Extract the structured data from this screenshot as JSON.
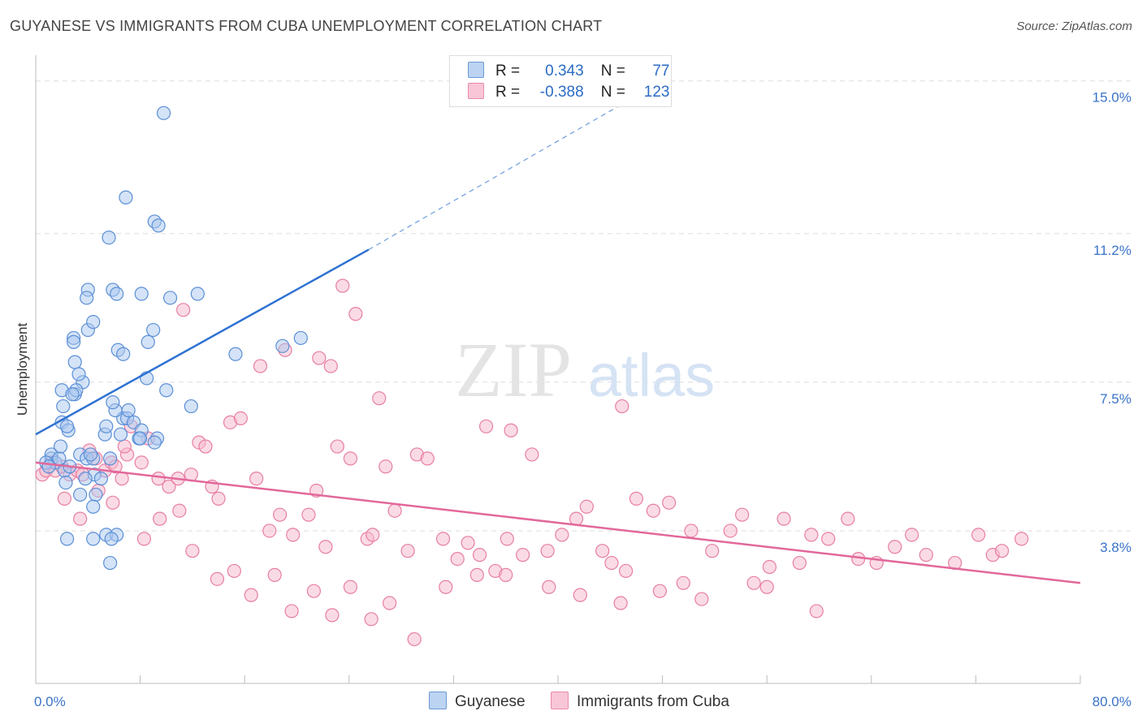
{
  "title": "GUYANESE VS IMMIGRANTS FROM CUBA UNEMPLOYMENT CORRELATION CHART",
  "source": "Source: ZipAtlas.com",
  "watermark": {
    "zip": "ZIP",
    "atlas": "atlas"
  },
  "legend": {
    "rows": [
      {
        "r_label": "R =",
        "r_value": "0.343",
        "n_label": "N =",
        "n_value": "77"
      },
      {
        "r_label": "R =",
        "r_value": "-0.388",
        "n_label": "N =",
        "n_value": "123"
      }
    ]
  },
  "colors": {
    "blue_fill": "#a9c8f0",
    "blue_stroke": "#5b8fd6",
    "blue_line": "#2e72d2",
    "pink_fill": "#f5b8cc",
    "pink_stroke": "#e87ea3",
    "pink_line": "#e2689a",
    "grid": "#dddddd",
    "tick_text": "#3a73c8"
  },
  "chart_data": {
    "type": "scatter",
    "title": "GUYANESE VS IMMIGRANTS FROM CUBA UNEMPLOYMENT CORRELATION CHART",
    "xlabel": "",
    "ylabel": "Unemployment",
    "xlim": [
      0,
      80
    ],
    "ylim": [
      0,
      15.5
    ],
    "x_tick_labels": [
      "0.0%",
      "80.0%"
    ],
    "y_ticks": [
      3.8,
      7.5,
      11.2,
      15.0
    ],
    "y_tick_labels": [
      "3.8%",
      "7.5%",
      "11.2%",
      "15.0%"
    ],
    "grid": "horizontal dashed",
    "legend_placement": "top-center",
    "series": [
      {
        "name": "Guyanese",
        "r": 0.343,
        "n": 77,
        "trend": {
          "x": [
            0,
            25.5
          ],
          "y": [
            6.2,
            10.8
          ],
          "dashed_to": [
            48,
            15.0
          ]
        },
        "points": [
          [
            1.2,
            5.6
          ],
          [
            1.2,
            5.7
          ],
          [
            1.5,
            5.5
          ],
          [
            1.8,
            5.6
          ],
          [
            0.8,
            5.5
          ],
          [
            1.0,
            5.4
          ],
          [
            2.2,
            5.3
          ],
          [
            2.6,
            5.4
          ],
          [
            1.9,
            5.9
          ],
          [
            2.0,
            6.5
          ],
          [
            2.5,
            6.3
          ],
          [
            2.4,
            6.4
          ],
          [
            2.3,
            5.0
          ],
          [
            3.4,
            5.7
          ],
          [
            3.9,
            5.6
          ],
          [
            4.5,
            5.2
          ],
          [
            4.4,
            5.6
          ],
          [
            5.0,
            5.1
          ],
          [
            3.8,
            5.1
          ],
          [
            4.2,
            5.7
          ],
          [
            2.1,
            6.9
          ],
          [
            2.0,
            7.3
          ],
          [
            3.0,
            7.2
          ],
          [
            3.6,
            7.5
          ],
          [
            3.1,
            7.3
          ],
          [
            3.0,
            8.0
          ],
          [
            3.3,
            7.7
          ],
          [
            2.9,
            8.6
          ],
          [
            2.9,
            8.5
          ],
          [
            2.8,
            7.2
          ],
          [
            4.0,
            8.8
          ],
          [
            5.7,
            5.6
          ],
          [
            5.3,
            6.2
          ],
          [
            6.7,
            6.6
          ],
          [
            7.0,
            6.6
          ],
          [
            7.1,
            6.8
          ],
          [
            6.1,
            6.8
          ],
          [
            5.9,
            7.0
          ],
          [
            5.4,
            6.4
          ],
          [
            7.5,
            6.5
          ],
          [
            6.5,
            6.2
          ],
          [
            8.1,
            6.3
          ],
          [
            7.9,
            6.1
          ],
          [
            8.0,
            6.1
          ],
          [
            9.3,
            6.1
          ],
          [
            9.1,
            6.0
          ],
          [
            8.5,
            7.6
          ],
          [
            10.0,
            7.3
          ],
          [
            4.0,
            9.8
          ],
          [
            3.9,
            9.6
          ],
          [
            4.4,
            9.0
          ],
          [
            5.9,
            9.8
          ],
          [
            6.2,
            9.7
          ],
          [
            8.1,
            9.7
          ],
          [
            9.0,
            8.8
          ],
          [
            8.6,
            8.5
          ],
          [
            10.3,
            9.6
          ],
          [
            6.3,
            8.3
          ],
          [
            6.7,
            8.2
          ],
          [
            11.9,
            6.9
          ],
          [
            4.6,
            4.7
          ],
          [
            4.4,
            4.4
          ],
          [
            3.4,
            4.7
          ],
          [
            2.4,
            3.6
          ],
          [
            4.4,
            3.6
          ],
          [
            5.4,
            3.7
          ],
          [
            5.7,
            3.0
          ],
          [
            6.2,
            3.7
          ],
          [
            5.8,
            3.6
          ],
          [
            9.8,
            14.2
          ],
          [
            6.9,
            12.1
          ],
          [
            9.1,
            11.5
          ],
          [
            9.4,
            11.4
          ],
          [
            5.6,
            11.1
          ],
          [
            12.4,
            9.7
          ],
          [
            15.3,
            8.2
          ],
          [
            18.9,
            8.4
          ],
          [
            20.3,
            8.6
          ]
        ]
      },
      {
        "name": "Immigrants from Cuba",
        "r": -0.388,
        "n": 123,
        "trend": {
          "x": [
            0,
            80
          ],
          "y": [
            5.5,
            2.5
          ]
        },
        "points": [
          [
            0.5,
            5.2
          ],
          [
            0.8,
            5.3
          ],
          [
            1.2,
            5.5
          ],
          [
            1.5,
            5.3
          ],
          [
            2.0,
            5.4
          ],
          [
            2.6,
            5.2
          ],
          [
            3.2,
            5.3
          ],
          [
            3.6,
            5.2
          ],
          [
            4.1,
            5.8
          ],
          [
            4.6,
            5.6
          ],
          [
            5.3,
            5.3
          ],
          [
            5.8,
            5.5
          ],
          [
            6.1,
            5.4
          ],
          [
            6.6,
            5.1
          ],
          [
            7.0,
            5.7
          ],
          [
            7.3,
            6.4
          ],
          [
            8.1,
            5.5
          ],
          [
            8.6,
            6.1
          ],
          [
            9.4,
            5.1
          ],
          [
            10.2,
            4.9
          ],
          [
            10.9,
            5.1
          ],
          [
            11.9,
            5.2
          ],
          [
            12.5,
            6.0
          ],
          [
            13.0,
            5.9
          ],
          [
            13.5,
            4.9
          ],
          [
            14.0,
            4.6
          ],
          [
            14.9,
            6.5
          ],
          [
            15.7,
            6.6
          ],
          [
            16.9,
            5.1
          ],
          [
            17.9,
            3.8
          ],
          [
            18.7,
            4.2
          ],
          [
            19.7,
            3.7
          ],
          [
            20.9,
            4.2
          ],
          [
            21.5,
            4.8
          ],
          [
            22.2,
            3.4
          ],
          [
            23.1,
            5.9
          ],
          [
            24.1,
            5.6
          ],
          [
            25.4,
            3.6
          ],
          [
            25.8,
            3.7
          ],
          [
            26.8,
            5.4
          ],
          [
            27.5,
            4.3
          ],
          [
            28.5,
            3.3
          ],
          [
            29.2,
            5.7
          ],
          [
            30.0,
            5.6
          ],
          [
            31.2,
            3.6
          ],
          [
            32.3,
            3.1
          ],
          [
            33.1,
            3.5
          ],
          [
            34.0,
            3.2
          ],
          [
            35.2,
            2.8
          ],
          [
            36.1,
            3.6
          ],
          [
            37.3,
            3.2
          ],
          [
            38.0,
            5.7
          ],
          [
            39.2,
            3.3
          ],
          [
            40.3,
            3.7
          ],
          [
            41.4,
            4.1
          ],
          [
            42.2,
            4.4
          ],
          [
            43.4,
            3.3
          ],
          [
            44.1,
            3.0
          ],
          [
            45.2,
            2.8
          ],
          [
            46.0,
            4.6
          ],
          [
            47.3,
            4.3
          ],
          [
            48.5,
            4.5
          ],
          [
            49.6,
            2.5
          ],
          [
            50.2,
            3.8
          ],
          [
            51.8,
            3.3
          ],
          [
            53.2,
            3.8
          ],
          [
            54.1,
            4.2
          ],
          [
            55.0,
            2.5
          ],
          [
            56.2,
            2.9
          ],
          [
            57.3,
            4.1
          ],
          [
            58.5,
            3.0
          ],
          [
            59.4,
            3.7
          ],
          [
            60.7,
            3.6
          ],
          [
            62.2,
            4.1
          ],
          [
            63.0,
            3.1
          ],
          [
            64.4,
            3.0
          ],
          [
            65.8,
            3.4
          ],
          [
            67.1,
            3.7
          ],
          [
            68.2,
            3.2
          ],
          [
            70.4,
            3.0
          ],
          [
            72.2,
            3.7
          ],
          [
            73.3,
            3.2
          ],
          [
            74.0,
            3.3
          ],
          [
            75.5,
            3.6
          ],
          [
            2.2,
            4.6
          ],
          [
            3.4,
            4.1
          ],
          [
            4.8,
            4.8
          ],
          [
            5.9,
            4.5
          ],
          [
            6.8,
            5.9
          ],
          [
            8.3,
            3.6
          ],
          [
            9.5,
            4.1
          ],
          [
            11.0,
            4.3
          ],
          [
            12.0,
            3.3
          ],
          [
            13.9,
            2.6
          ],
          [
            15.2,
            2.8
          ],
          [
            16.5,
            2.2
          ],
          [
            18.3,
            2.7
          ],
          [
            19.6,
            1.8
          ],
          [
            21.3,
            2.3
          ],
          [
            22.7,
            1.7
          ],
          [
            24.1,
            2.4
          ],
          [
            25.7,
            1.6
          ],
          [
            27.1,
            2.0
          ],
          [
            29.0,
            1.1
          ],
          [
            31.4,
            2.4
          ],
          [
            33.8,
            2.7
          ],
          [
            36.0,
            2.7
          ],
          [
            39.3,
            2.4
          ],
          [
            41.7,
            2.2
          ],
          [
            44.8,
            2.0
          ],
          [
            47.8,
            2.3
          ],
          [
            51.0,
            2.1
          ],
          [
            56.0,
            2.4
          ],
          [
            59.8,
            1.8
          ],
          [
            11.3,
            9.3
          ],
          [
            17.2,
            7.9
          ],
          [
            19.1,
            8.3
          ],
          [
            21.7,
            8.1
          ],
          [
            22.6,
            7.9
          ],
          [
            23.5,
            9.9
          ],
          [
            24.5,
            9.2
          ],
          [
            26.3,
            7.1
          ],
          [
            34.5,
            6.4
          ],
          [
            36.4,
            6.3
          ],
          [
            44.9,
            6.9
          ]
        ]
      }
    ]
  }
}
